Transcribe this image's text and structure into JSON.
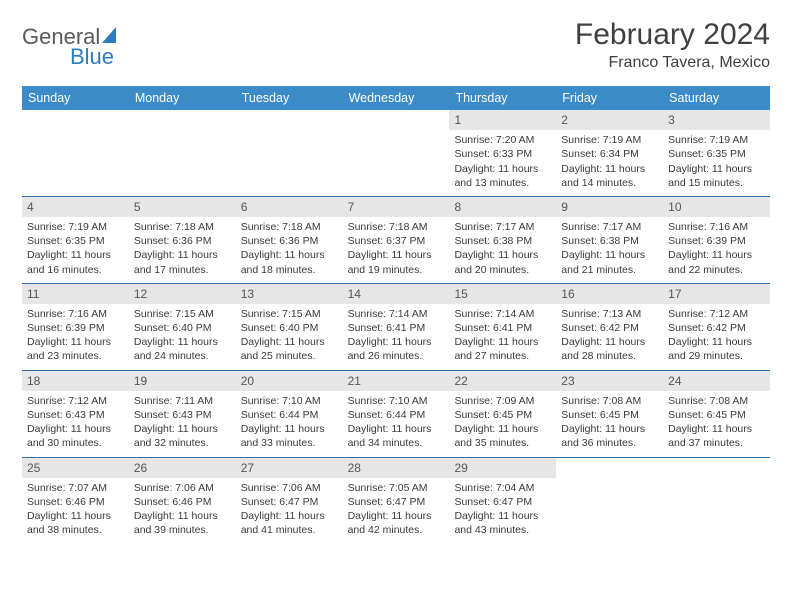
{
  "brand": {
    "word1": "General",
    "word2": "Blue"
  },
  "title": "February 2024",
  "location": "Franco Tavera, Mexico",
  "colors": {
    "header_bg": "#3b8bc8",
    "row_border": "#2f6ea8",
    "daybar_bg": "#e6e6e6",
    "text": "#3a3a3a",
    "brand_blue": "#2f7bbf"
  },
  "weekdays": [
    "Sunday",
    "Monday",
    "Tuesday",
    "Wednesday",
    "Thursday",
    "Friday",
    "Saturday"
  ],
  "weeks": [
    [
      {
        "empty": true
      },
      {
        "empty": true
      },
      {
        "empty": true
      },
      {
        "empty": true
      },
      {
        "day": "1",
        "sunrise": "Sunrise: 7:20 AM",
        "sunset": "Sunset: 6:33 PM",
        "daylight": "Daylight: 11 hours and 13 minutes."
      },
      {
        "day": "2",
        "sunrise": "Sunrise: 7:19 AM",
        "sunset": "Sunset: 6:34 PM",
        "daylight": "Daylight: 11 hours and 14 minutes."
      },
      {
        "day": "3",
        "sunrise": "Sunrise: 7:19 AM",
        "sunset": "Sunset: 6:35 PM",
        "daylight": "Daylight: 11 hours and 15 minutes."
      }
    ],
    [
      {
        "day": "4",
        "sunrise": "Sunrise: 7:19 AM",
        "sunset": "Sunset: 6:35 PM",
        "daylight": "Daylight: 11 hours and 16 minutes."
      },
      {
        "day": "5",
        "sunrise": "Sunrise: 7:18 AM",
        "sunset": "Sunset: 6:36 PM",
        "daylight": "Daylight: 11 hours and 17 minutes."
      },
      {
        "day": "6",
        "sunrise": "Sunrise: 7:18 AM",
        "sunset": "Sunset: 6:36 PM",
        "daylight": "Daylight: 11 hours and 18 minutes."
      },
      {
        "day": "7",
        "sunrise": "Sunrise: 7:18 AM",
        "sunset": "Sunset: 6:37 PM",
        "daylight": "Daylight: 11 hours and 19 minutes."
      },
      {
        "day": "8",
        "sunrise": "Sunrise: 7:17 AM",
        "sunset": "Sunset: 6:38 PM",
        "daylight": "Daylight: 11 hours and 20 minutes."
      },
      {
        "day": "9",
        "sunrise": "Sunrise: 7:17 AM",
        "sunset": "Sunset: 6:38 PM",
        "daylight": "Daylight: 11 hours and 21 minutes."
      },
      {
        "day": "10",
        "sunrise": "Sunrise: 7:16 AM",
        "sunset": "Sunset: 6:39 PM",
        "daylight": "Daylight: 11 hours and 22 minutes."
      }
    ],
    [
      {
        "day": "11",
        "sunrise": "Sunrise: 7:16 AM",
        "sunset": "Sunset: 6:39 PM",
        "daylight": "Daylight: 11 hours and 23 minutes."
      },
      {
        "day": "12",
        "sunrise": "Sunrise: 7:15 AM",
        "sunset": "Sunset: 6:40 PM",
        "daylight": "Daylight: 11 hours and 24 minutes."
      },
      {
        "day": "13",
        "sunrise": "Sunrise: 7:15 AM",
        "sunset": "Sunset: 6:40 PM",
        "daylight": "Daylight: 11 hours and 25 minutes."
      },
      {
        "day": "14",
        "sunrise": "Sunrise: 7:14 AM",
        "sunset": "Sunset: 6:41 PM",
        "daylight": "Daylight: 11 hours and 26 minutes."
      },
      {
        "day": "15",
        "sunrise": "Sunrise: 7:14 AM",
        "sunset": "Sunset: 6:41 PM",
        "daylight": "Daylight: 11 hours and 27 minutes."
      },
      {
        "day": "16",
        "sunrise": "Sunrise: 7:13 AM",
        "sunset": "Sunset: 6:42 PM",
        "daylight": "Daylight: 11 hours and 28 minutes."
      },
      {
        "day": "17",
        "sunrise": "Sunrise: 7:12 AM",
        "sunset": "Sunset: 6:42 PM",
        "daylight": "Daylight: 11 hours and 29 minutes."
      }
    ],
    [
      {
        "day": "18",
        "sunrise": "Sunrise: 7:12 AM",
        "sunset": "Sunset: 6:43 PM",
        "daylight": "Daylight: 11 hours and 30 minutes."
      },
      {
        "day": "19",
        "sunrise": "Sunrise: 7:11 AM",
        "sunset": "Sunset: 6:43 PM",
        "daylight": "Daylight: 11 hours and 32 minutes."
      },
      {
        "day": "20",
        "sunrise": "Sunrise: 7:10 AM",
        "sunset": "Sunset: 6:44 PM",
        "daylight": "Daylight: 11 hours and 33 minutes."
      },
      {
        "day": "21",
        "sunrise": "Sunrise: 7:10 AM",
        "sunset": "Sunset: 6:44 PM",
        "daylight": "Daylight: 11 hours and 34 minutes."
      },
      {
        "day": "22",
        "sunrise": "Sunrise: 7:09 AM",
        "sunset": "Sunset: 6:45 PM",
        "daylight": "Daylight: 11 hours and 35 minutes."
      },
      {
        "day": "23",
        "sunrise": "Sunrise: 7:08 AM",
        "sunset": "Sunset: 6:45 PM",
        "daylight": "Daylight: 11 hours and 36 minutes."
      },
      {
        "day": "24",
        "sunrise": "Sunrise: 7:08 AM",
        "sunset": "Sunset: 6:45 PM",
        "daylight": "Daylight: 11 hours and 37 minutes."
      }
    ],
    [
      {
        "day": "25",
        "sunrise": "Sunrise: 7:07 AM",
        "sunset": "Sunset: 6:46 PM",
        "daylight": "Daylight: 11 hours and 38 minutes."
      },
      {
        "day": "26",
        "sunrise": "Sunrise: 7:06 AM",
        "sunset": "Sunset: 6:46 PM",
        "daylight": "Daylight: 11 hours and 39 minutes."
      },
      {
        "day": "27",
        "sunrise": "Sunrise: 7:06 AM",
        "sunset": "Sunset: 6:47 PM",
        "daylight": "Daylight: 11 hours and 41 minutes."
      },
      {
        "day": "28",
        "sunrise": "Sunrise: 7:05 AM",
        "sunset": "Sunset: 6:47 PM",
        "daylight": "Daylight: 11 hours and 42 minutes."
      },
      {
        "day": "29",
        "sunrise": "Sunrise: 7:04 AM",
        "sunset": "Sunset: 6:47 PM",
        "daylight": "Daylight: 11 hours and 43 minutes."
      },
      {
        "empty": true
      },
      {
        "empty": true
      }
    ]
  ]
}
